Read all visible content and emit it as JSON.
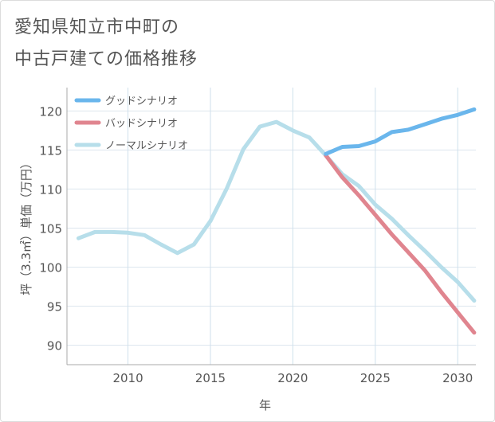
{
  "page": {
    "title_line1": "愛知県知立市中町の",
    "title_line2": "中古戸建ての価格推移"
  },
  "chart_data": {
    "type": "line",
    "title": "愛知県知立市中町の中古戸建ての価格推移",
    "xlabel": "年",
    "ylabel": "坪（3.3㎡）単価（万円）",
    "xlim": [
      2006.3,
      2031.1
    ],
    "ylim": [
      87.5,
      123
    ],
    "xticks": [
      2010,
      2015,
      2020,
      2025,
      2030
    ],
    "yticks": [
      90,
      95,
      100,
      105,
      110,
      115,
      120
    ],
    "grid": true,
    "legend_position": "top-left",
    "series": [
      {
        "name": "グッドシナリオ",
        "color": "#6ab6ec",
        "x": [
          2022,
          2023,
          2024,
          2025,
          2026,
          2027,
          2028,
          2029,
          2030,
          2031
        ],
        "y": [
          114.5,
          115.4,
          115.5,
          116.1,
          117.3,
          117.6,
          118.3,
          119.0,
          119.5,
          120.2
        ]
      },
      {
        "name": "バッドシナリオ",
        "color": "#e0858f",
        "x": [
          2022,
          2023,
          2024,
          2025,
          2026,
          2027,
          2028,
          2029,
          2030,
          2031
        ],
        "y": [
          114.3,
          111.5,
          109.2,
          106.7,
          104.2,
          101.9,
          99.6,
          96.8,
          94.2,
          91.6
        ]
      },
      {
        "name": "ノーマルシナリオ",
        "color": "#b7deea",
        "x": [
          2007,
          2008,
          2009,
          2010,
          2011,
          2012,
          2013,
          2014,
          2015,
          2016,
          2017,
          2018,
          2019,
          2020,
          2021,
          2022,
          2023,
          2024,
          2025,
          2026,
          2027,
          2028,
          2029,
          2030,
          2031
        ],
        "y": [
          103.7,
          104.5,
          104.5,
          104.4,
          104.1,
          102.9,
          101.8,
          102.9,
          105.9,
          110.1,
          115.1,
          118.0,
          118.6,
          117.5,
          116.6,
          114.3,
          111.9,
          110.4,
          108.0,
          106.2,
          104.1,
          102.1,
          100.0,
          98.1,
          95.7
        ]
      }
    ]
  }
}
